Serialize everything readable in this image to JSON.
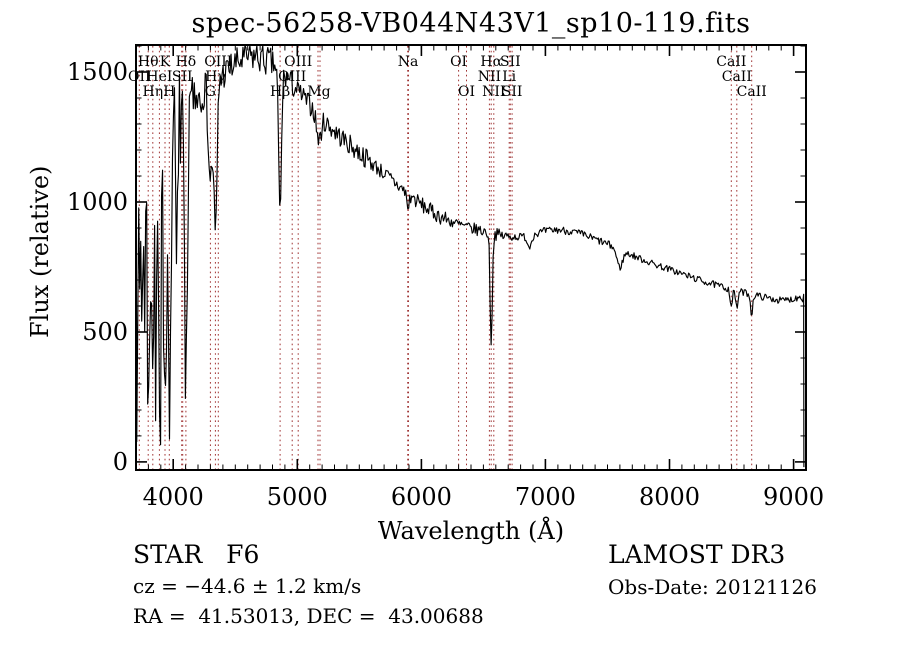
{
  "chart_data": {
    "type": "line",
    "title": "spec-56258-VB044N43V1_sp10-119.fits",
    "xlabel": "Wavelength (Å)",
    "ylabel": "Flux (relative)",
    "x_ticks": [
      4000,
      5000,
      6000,
      7000,
      8000,
      9000
    ],
    "y_ticks": [
      0,
      500,
      1000,
      1500
    ],
    "x_minor_step": 100,
    "y_minor_step": 100,
    "x_range": [
      3700,
      9100
    ],
    "y_range": [
      -31,
      1604
    ],
    "grid": false,
    "legend": "none",
    "spectral_lines": [
      {
        "label": "Hθ",
        "wavelength": 3798,
        "row": 1
      },
      {
        "label": "K",
        "wavelength": 3934,
        "row": 1
      },
      {
        "label": "Hδ",
        "wavelength": 4102,
        "row": 1
      },
      {
        "label": "OIII",
        "wavelength": 4363,
        "row": 1
      },
      {
        "label": "OIII",
        "wavelength": 5007,
        "row": 1
      },
      {
        "label": "Na",
        "wavelength": 5893,
        "row": 1
      },
      {
        "label": "OI",
        "wavelength": 6300,
        "row": 1
      },
      {
        "label": "Hα",
        "wavelength": 6563,
        "row": 1
      },
      {
        "label": "SII",
        "wavelength": 6717,
        "row": 1
      },
      {
        "label": "CaII",
        "wavelength": 8498,
        "row": 1
      },
      {
        "label": "OII",
        "wavelength": 3727,
        "row": 2
      },
      {
        "label": "HeI",
        "wavelength": 3889,
        "row": 2
      },
      {
        "label": "SII",
        "wavelength": 4072,
        "row": 2
      },
      {
        "label": "Hγ",
        "wavelength": 4340,
        "row": 2
      },
      {
        "label": "OIII",
        "wavelength": 4959,
        "row": 2
      },
      {
        "label": "NII",
        "wavelength": 6548,
        "row": 2
      },
      {
        "label": "Li",
        "wavelength": 6708,
        "row": 2
      },
      {
        "label": "CaII",
        "wavelength": 8542,
        "row": 2
      },
      {
        "label": "Hη",
        "wavelength": 3835,
        "row": 3
      },
      {
        "label": "H",
        "wavelength": 3968,
        "row": 3
      },
      {
        "label": "G",
        "wavelength": 4300,
        "row": 3
      },
      {
        "label": "Hβ",
        "wavelength": 4861,
        "row": 3
      },
      {
        "label": "Mg",
        "wavelength": 5175,
        "row": 3
      },
      {
        "label": "OI",
        "wavelength": 6364,
        "row": 3
      },
      {
        "label": "NII",
        "wavelength": 6584,
        "row": 3
      },
      {
        "label": "SII",
        "wavelength": 6731,
        "row": 3
      },
      {
        "label": "CaII",
        "wavelength": 8662,
        "row": 3
      }
    ],
    "line_markers": [
      3727,
      3798,
      3835,
      3889,
      3934,
      3968,
      4068,
      4076,
      4102,
      4300,
      4340,
      4363,
      4861,
      4959,
      5007,
      5167,
      5183,
      5890,
      5896,
      6300,
      6364,
      6548,
      6563,
      6584,
      6708,
      6717,
      6731,
      8498,
      8542,
      8662
    ],
    "spectrum": {
      "continuum_points": [
        [
          3700,
          1300
        ],
        [
          3750,
          1300
        ],
        [
          3800,
          1305
        ],
        [
          3850,
          1310
        ],
        [
          3900,
          1320
        ],
        [
          3950,
          1330
        ],
        [
          4000,
          1340
        ],
        [
          4050,
          1360
        ],
        [
          4100,
          1380
        ],
        [
          4150,
          1400
        ],
        [
          4200,
          1420
        ],
        [
          4250,
          1440
        ],
        [
          4300,
          1460
        ],
        [
          4350,
          1475
        ],
        [
          4400,
          1490
        ],
        [
          4450,
          1510
        ],
        [
          4500,
          1530
        ],
        [
          4550,
          1545
        ],
        [
          4600,
          1555
        ],
        [
          4650,
          1560
        ],
        [
          4700,
          1555
        ],
        [
          4750,
          1545
        ],
        [
          4800,
          1530
        ],
        [
          4850,
          1512
        ],
        [
          4900,
          1485
        ],
        [
          4950,
          1458
        ],
        [
          5000,
          1430
        ],
        [
          5100,
          1375
        ],
        [
          5200,
          1320
        ],
        [
          5300,
          1272
        ],
        [
          5400,
          1228
        ],
        [
          5500,
          1190
        ],
        [
          5600,
          1150
        ],
        [
          5700,
          1110
        ],
        [
          5800,
          1068
        ],
        [
          5900,
          1028
        ],
        [
          6000,
          990
        ],
        [
          6100,
          958
        ],
        [
          6200,
          933
        ],
        [
          6300,
          913
        ],
        [
          6400,
          898
        ],
        [
          6500,
          888
        ],
        [
          6600,
          876
        ],
        [
          6700,
          866
        ],
        [
          6800,
          866
        ],
        [
          6900,
          876
        ],
        [
          7000,
          888
        ],
        [
          7100,
          893
        ],
        [
          7200,
          888
        ],
        [
          7300,
          875
        ],
        [
          7400,
          857
        ],
        [
          7500,
          838
        ],
        [
          7600,
          815
        ],
        [
          7700,
          795
        ],
        [
          7800,
          775
        ],
        [
          7900,
          757
        ],
        [
          8000,
          741
        ],
        [
          8100,
          724
        ],
        [
          8200,
          707
        ],
        [
          8300,
          691
        ],
        [
          8400,
          677
        ],
        [
          8500,
          663
        ],
        [
          8600,
          652
        ],
        [
          8700,
          641
        ],
        [
          8800,
          630
        ],
        [
          8900,
          621
        ],
        [
          9000,
          627
        ],
        [
          9060,
          638
        ],
        [
          9085,
          620
        ]
      ],
      "absorption_dips": [
        [
          3712,
          400,
          6
        ],
        [
          3734,
          650,
          6
        ],
        [
          3750,
          560,
          6
        ],
        [
          3771,
          480,
          7
        ],
        [
          3798,
          280,
          9
        ],
        [
          3820,
          620,
          6
        ],
        [
          3835,
          300,
          9
        ],
        [
          3862,
          680,
          7
        ],
        [
          3889,
          250,
          9
        ],
        [
          3934,
          75,
          11
        ],
        [
          3970,
          60,
          11
        ],
        [
          4026,
          720,
          7
        ],
        [
          4102,
          430,
          13
        ],
        [
          4300,
          1080,
          16
        ],
        [
          4340,
          850,
          13
        ],
        [
          4861,
          945,
          11
        ],
        [
          5175,
          1235,
          18
        ],
        [
          5893,
          975,
          9
        ],
        [
          6563,
          465,
          9
        ],
        [
          6870,
          828,
          16
        ],
        [
          7600,
          748,
          22
        ],
        [
          8498,
          602,
          9
        ],
        [
          8542,
          590,
          9
        ],
        [
          8662,
          570,
          9
        ]
      ],
      "noise_segments": [
        [
          3700,
          3960,
          215
        ],
        [
          3960,
          4150,
          150
        ],
        [
          4150,
          4400,
          85
        ],
        [
          4400,
          4800,
          62
        ],
        [
          4800,
          5000,
          50
        ],
        [
          5000,
          5600,
          40
        ],
        [
          5600,
          6200,
          30
        ],
        [
          6200,
          6700,
          24
        ],
        [
          6700,
          7600,
          15
        ],
        [
          7600,
          9085,
          13
        ]
      ],
      "start_wavelength": 3700,
      "end_drop_wavelength": 9085
    }
  },
  "annotations": {
    "class_line": "STAR   F6",
    "cz_line": "cz = −44.6 ± 1.2 km/s",
    "radec_line": "RA =  41.53013, DEC =  43.00688",
    "survey": "LAMOST DR3",
    "obsdate_line": "Obs-Date: 20121126"
  },
  "colors": {
    "background": "#ffffff",
    "text": "#000000",
    "spectrum_line": "#000000",
    "marker_line": "#a03434"
  }
}
